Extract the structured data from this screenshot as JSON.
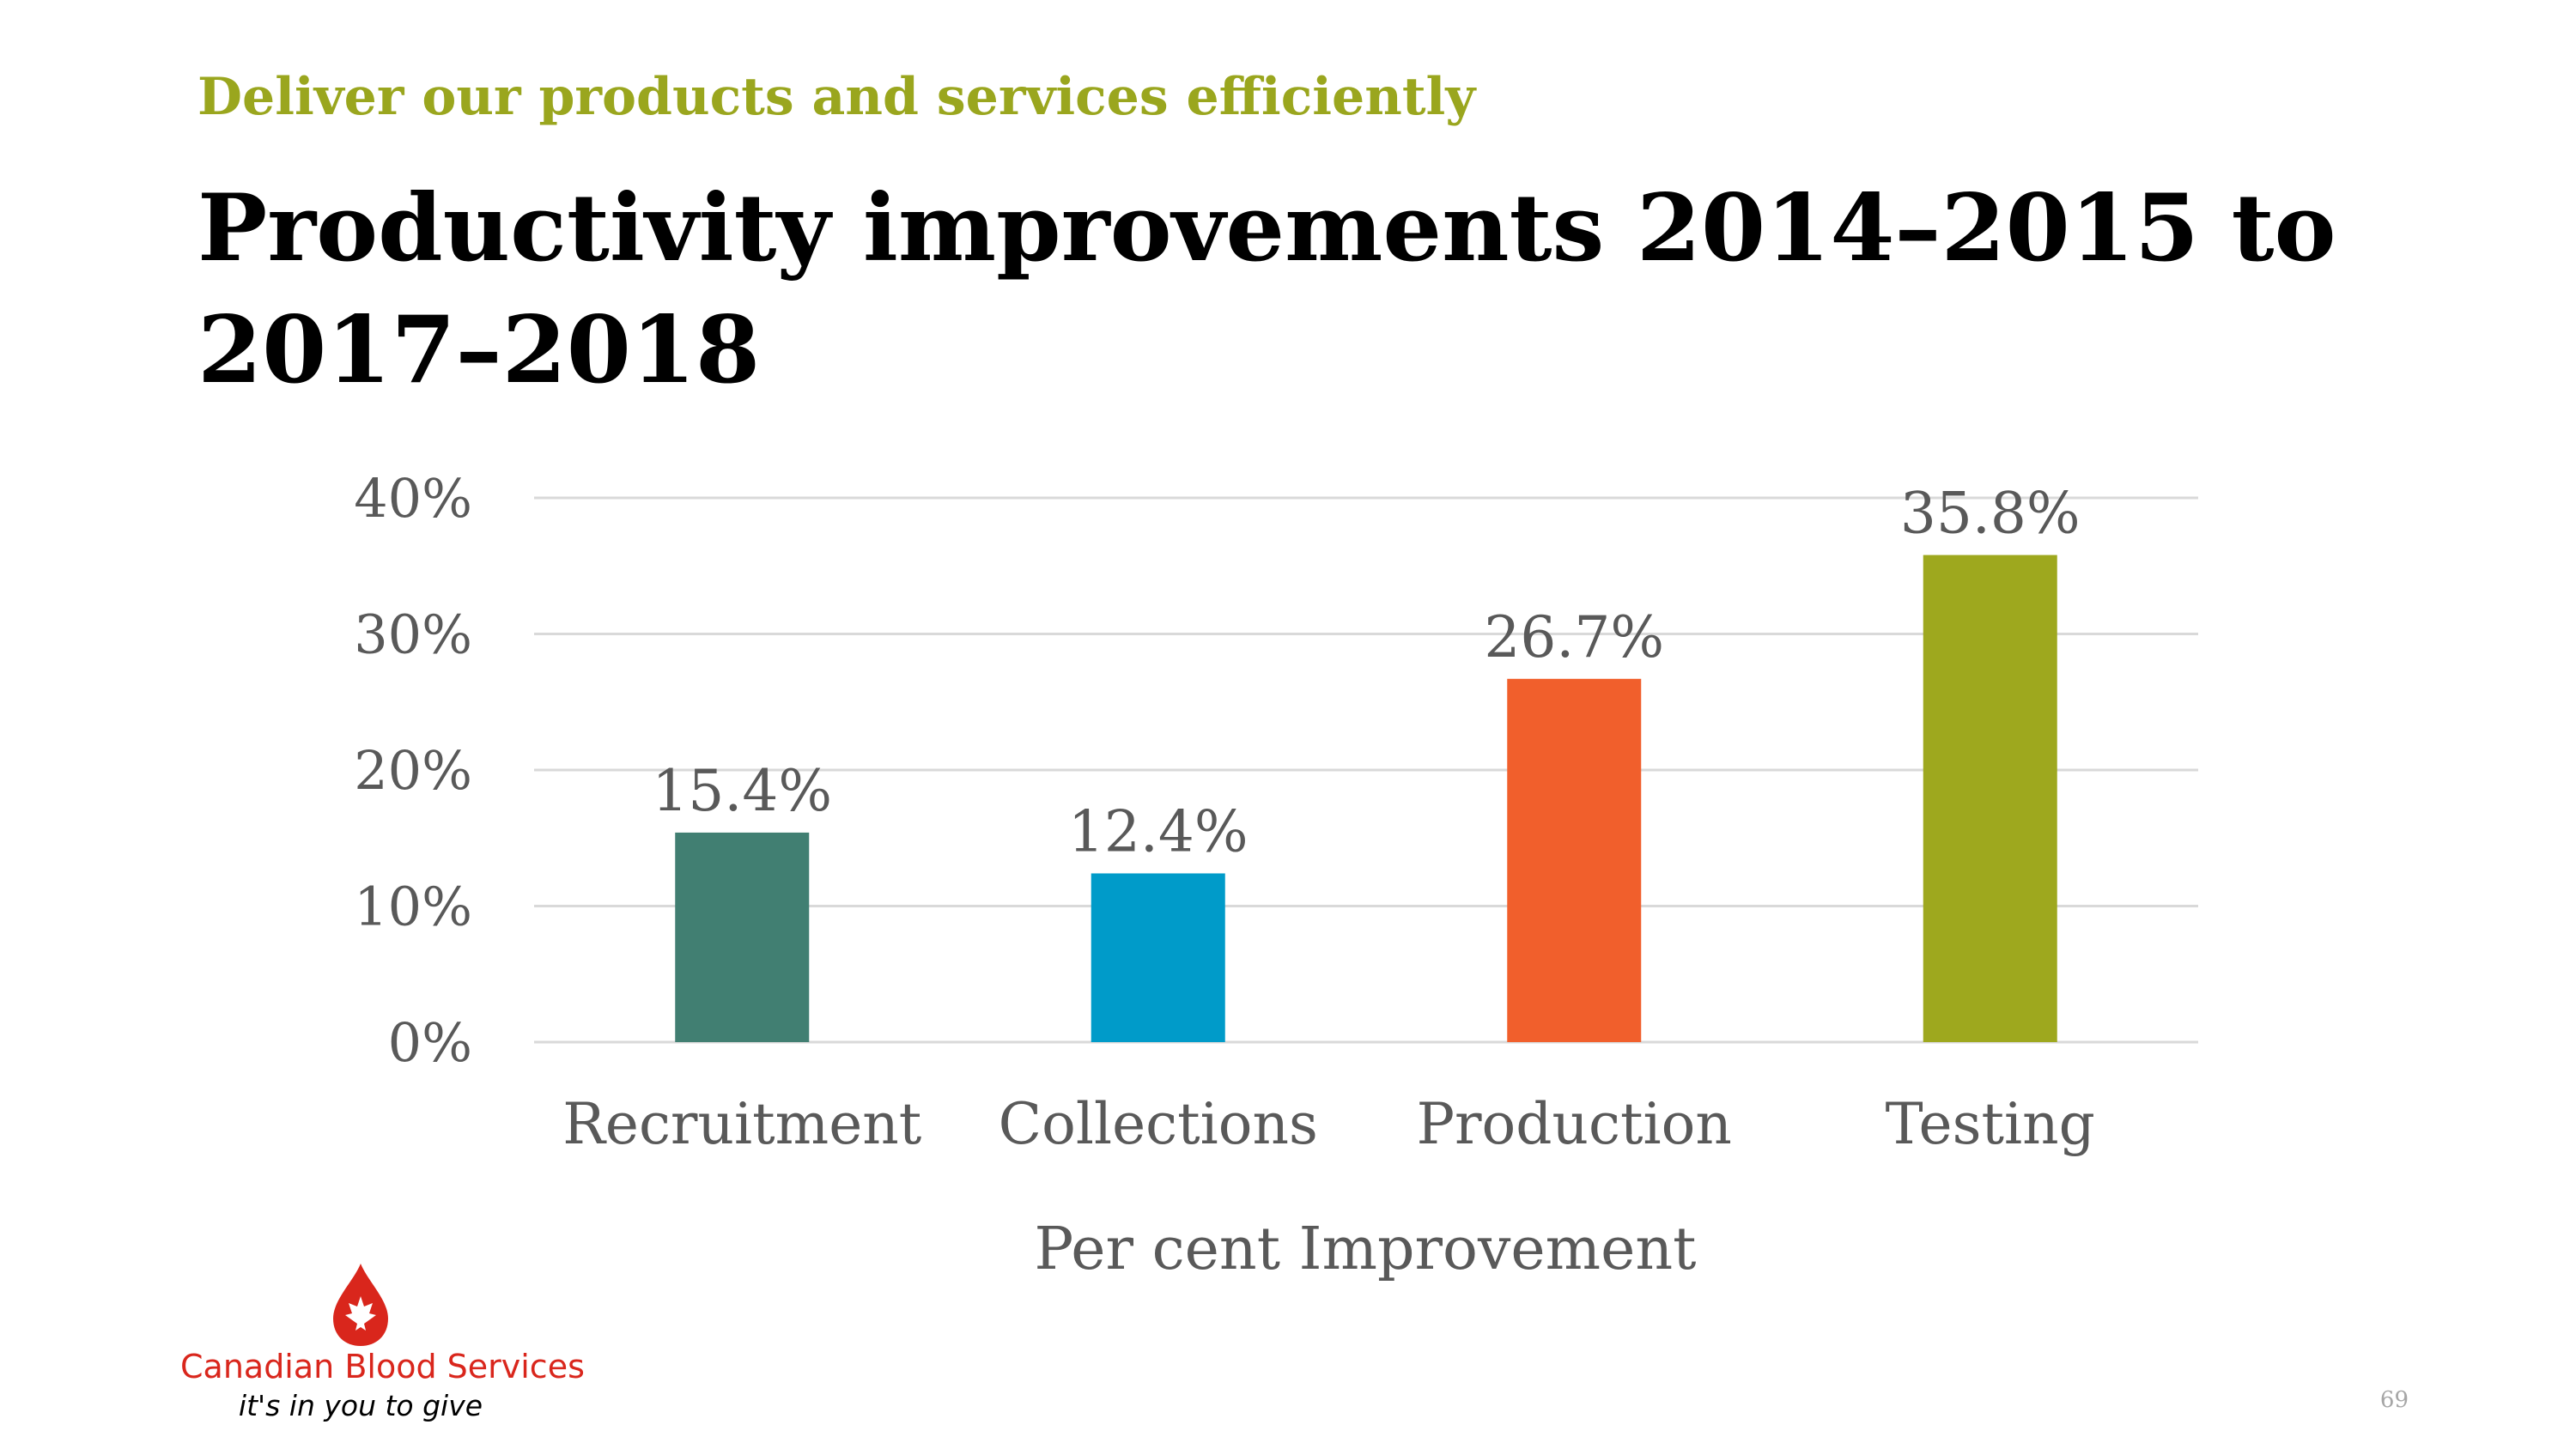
{
  "slide": {
    "subtitle": "Deliver our products and services efficiently",
    "title": "Productivity improvements 2014–2015 to 2017–2018",
    "page_number": "69"
  },
  "logo": {
    "name": "Canadian Blood Services",
    "tagline": "it's in you to give",
    "color": "#d9261c"
  },
  "chart_data": {
    "type": "bar",
    "categories": [
      "Recruitment",
      "Collections",
      "Production",
      "Testing"
    ],
    "values": [
      15.4,
      12.4,
      26.7,
      35.8
    ],
    "data_labels": [
      "15.4%",
      "12.4%",
      "26.7%",
      "35.8%"
    ],
    "colors": [
      "#417f72",
      "#009bc9",
      "#f15f2c",
      "#9ea81e"
    ],
    "xlabel": "Per cent Improvement",
    "ylabel": "",
    "ylim": [
      0,
      40
    ],
    "yticks": [
      0,
      10,
      20,
      30,
      40
    ],
    "ytick_labels": [
      "0%",
      "10%",
      "20%",
      "30%",
      "40%"
    ],
    "grid": true,
    "legend": false
  }
}
